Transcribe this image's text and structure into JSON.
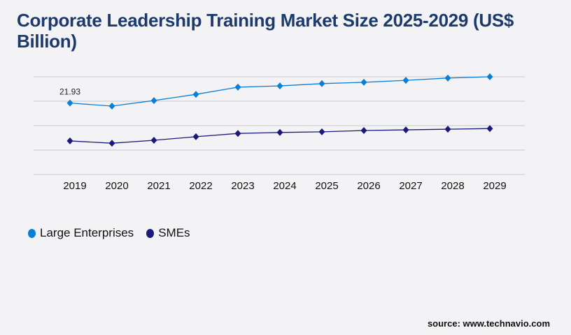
{
  "chart_data": {
    "type": "line",
    "title": "Corporate Leadership Training Market Size 2025-2029 (US$ Billion)",
    "xlabel": "",
    "ylabel": "",
    "categories": [
      "2019",
      "2020",
      "2021",
      "2022",
      "2023",
      "2024",
      "2025",
      "2026",
      "2027",
      "2028",
      "2029"
    ],
    "ylim": [
      0,
      30
    ],
    "grid": true,
    "legend_placement": "bottom-left",
    "series": [
      {
        "name": "Large Enterprises",
        "color": "#0a7fd6",
        "values": [
          21.93,
          21.0,
          22.7,
          24.6,
          26.8,
          27.2,
          27.9,
          28.3,
          28.9,
          29.6,
          30.0
        ]
      },
      {
        "name": "SMEs",
        "color": "#1b1a7a",
        "values": [
          10.3,
          9.6,
          10.5,
          11.6,
          12.6,
          12.9,
          13.1,
          13.5,
          13.7,
          13.9,
          14.1
        ]
      }
    ],
    "annotations": [
      {
        "series": 0,
        "index": 0,
        "text": "21.93"
      }
    ]
  },
  "source": "source: www.technavio.com"
}
